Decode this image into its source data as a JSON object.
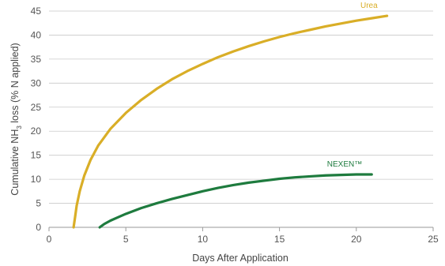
{
  "colors": {
    "urea": "#D9AE27",
    "nexen": "#1E7B3E",
    "grid": "#C9C9C9",
    "axis": "#9A9A9A"
  },
  "chart_data": {
    "type": "line",
    "xlabel": "Days After Application",
    "ylabel": {
      "pre": "Cumulative NH",
      "sub": "3",
      "post": " loss (% N applied)"
    },
    "xlim": [
      0,
      25
    ],
    "ylim": [
      0,
      45
    ],
    "xticks": [
      0,
      5,
      10,
      15,
      20,
      25
    ],
    "yticks": [
      0,
      5,
      10,
      15,
      20,
      25,
      30,
      35,
      40,
      45
    ],
    "grid": "horizontal",
    "series": [
      {
        "name": "Urea",
        "color": "#D9AE27",
        "x": [
          1.6,
          1.7,
          1.8,
          2.0,
          2.3,
          2.7,
          3.2,
          4,
          5,
          6,
          7,
          8,
          9,
          10,
          11,
          12,
          13,
          14,
          15,
          16,
          17,
          18,
          19,
          20,
          21,
          22
        ],
        "y": [
          0,
          2.2,
          4.5,
          7.5,
          10.8,
          14.0,
          17.0,
          20.5,
          23.8,
          26.5,
          28.8,
          30.8,
          32.5,
          34.0,
          35.4,
          36.6,
          37.7,
          38.7,
          39.6,
          40.4,
          41.1,
          41.8,
          42.4,
          43.0,
          43.5,
          44.0
        ]
      },
      {
        "name": "NEXEN™",
        "color": "#1E7B3E",
        "x": [
          3.3,
          3.6,
          4,
          4.5,
          5,
          6,
          7,
          8,
          9,
          10,
          11,
          12,
          13,
          14,
          15,
          16,
          17,
          18,
          19,
          20,
          21
        ],
        "y": [
          0,
          0.7,
          1.4,
          2.1,
          2.8,
          4.0,
          5.0,
          5.9,
          6.7,
          7.5,
          8.2,
          8.8,
          9.3,
          9.7,
          10.1,
          10.4,
          10.6,
          10.8,
          10.9,
          11.0,
          11.0
        ]
      }
    ]
  }
}
